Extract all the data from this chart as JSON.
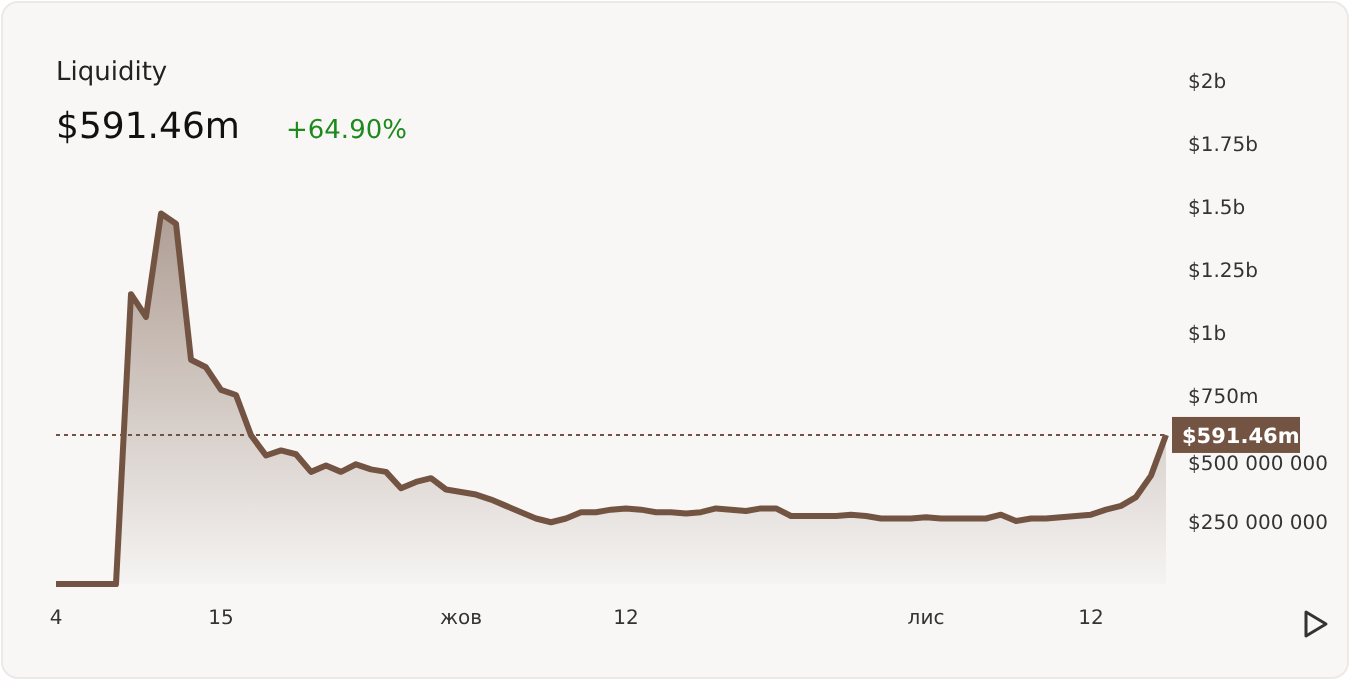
{
  "chart_data": {
    "type": "area",
    "title": "Liquidity",
    "subtitle": "$591.46m",
    "annotations": [
      "+64.90%"
    ],
    "x": [
      "--09-04",
      "--09-08",
      "--09-09",
      "--09-10",
      "--09-11",
      "--09-12",
      "--09-13",
      "--09-14",
      "--09-15",
      "--09-16",
      "--09-17",
      "--09-18",
      "--09-19",
      "--09-20",
      "--09-21",
      "--09-22",
      "--09-23",
      "--09-24",
      "--09-25",
      "--09-26",
      "--09-27",
      "--09-28",
      "--09-29",
      "--09-30",
      "--10-01",
      "--10-02",
      "--10-03",
      "--10-04",
      "--10-05",
      "--10-06",
      "--10-07",
      "--10-08",
      "--10-09",
      "--10-10",
      "--10-11",
      "--10-12",
      "--10-13",
      "--10-14",
      "--10-15",
      "--10-16",
      "--10-17",
      "--10-18",
      "--10-19",
      "--10-20",
      "--10-21",
      "--10-22",
      "--10-23",
      "--10-24",
      "--10-25",
      "--10-26",
      "--10-27",
      "--10-28",
      "--10-29",
      "--10-30",
      "--10-31",
      "--11-01",
      "--11-02",
      "--11-03",
      "--11-04",
      "--11-05",
      "--11-06",
      "--11-07",
      "--11-08",
      "--11-09",
      "--11-10",
      "--11-11",
      "--11-12",
      "--11-13",
      "--11-14",
      "--11-15",
      "--11-16",
      "--11-17"
    ],
    "series": [
      {
        "color": "#735443",
        "values": [
          0,
          0,
          1150000000,
          1060000000,
          1470000000,
          1430000000,
          890000000,
          860000000,
          770000000,
          750000000,
          590000000,
          510000000,
          530000000,
          515000000,
          445000000,
          470000000,
          445000000,
          475000000,
          455000000,
          445000000,
          380000000,
          405000000,
          420000000,
          375000000,
          365000000,
          355000000,
          335000000,
          310000000,
          285000000,
          260000000,
          245000000,
          260000000,
          285000000,
          285000000,
          295000000,
          300000000,
          295000000,
          285000000,
          285000000,
          280000000,
          285000000,
          300000000,
          295000000,
          290000000,
          300000000,
          300000000,
          270000000,
          270000000,
          270000000,
          270000000,
          275000000,
          270000000,
          260000000,
          260000000,
          260000000,
          265000000,
          260000000,
          260000000,
          260000000,
          260000000,
          275000000,
          250000000,
          260000000,
          260000000,
          265000000,
          270000000,
          275000000,
          295000000,
          310000000,
          345000000,
          430000000,
          591460000
        ]
      }
    ],
    "xlim": [
      "--09-04",
      "--11-17"
    ],
    "xticks": [
      {
        "value": "--09-04",
        "label": "4"
      },
      {
        "value": "--09-15",
        "label": "15"
      },
      {
        "value": "--10-01",
        "label": "жов"
      },
      {
        "value": "--10-12",
        "label": "12"
      },
      {
        "value": "--11-01",
        "label": "лис"
      },
      {
        "value": "--11-12",
        "label": "12"
      }
    ],
    "ylim": [
      0,
      2000000000
    ],
    "yticks": [
      {
        "value": 250000000,
        "label": "$250 000 000"
      },
      {
        "value": 500000000,
        "label": "$500 000 000"
      },
      {
        "value": 750000000,
        "label": "$750m"
      },
      {
        "value": 1000000000,
        "label": "$1b"
      },
      {
        "value": 1250000000,
        "label": "$1.25b"
      },
      {
        "value": 1500000000,
        "label": "$1.5b"
      },
      {
        "value": 1750000000,
        "label": "$1.75b"
      },
      {
        "value": 2000000000,
        "label": "$2b"
      }
    ],
    "ref_lines": [
      {
        "axis": "y",
        "value": 591460000,
        "label": "$591.46m",
        "color": "#735443",
        "line_style": "dotted"
      }
    ],
    "grid": false
  }
}
